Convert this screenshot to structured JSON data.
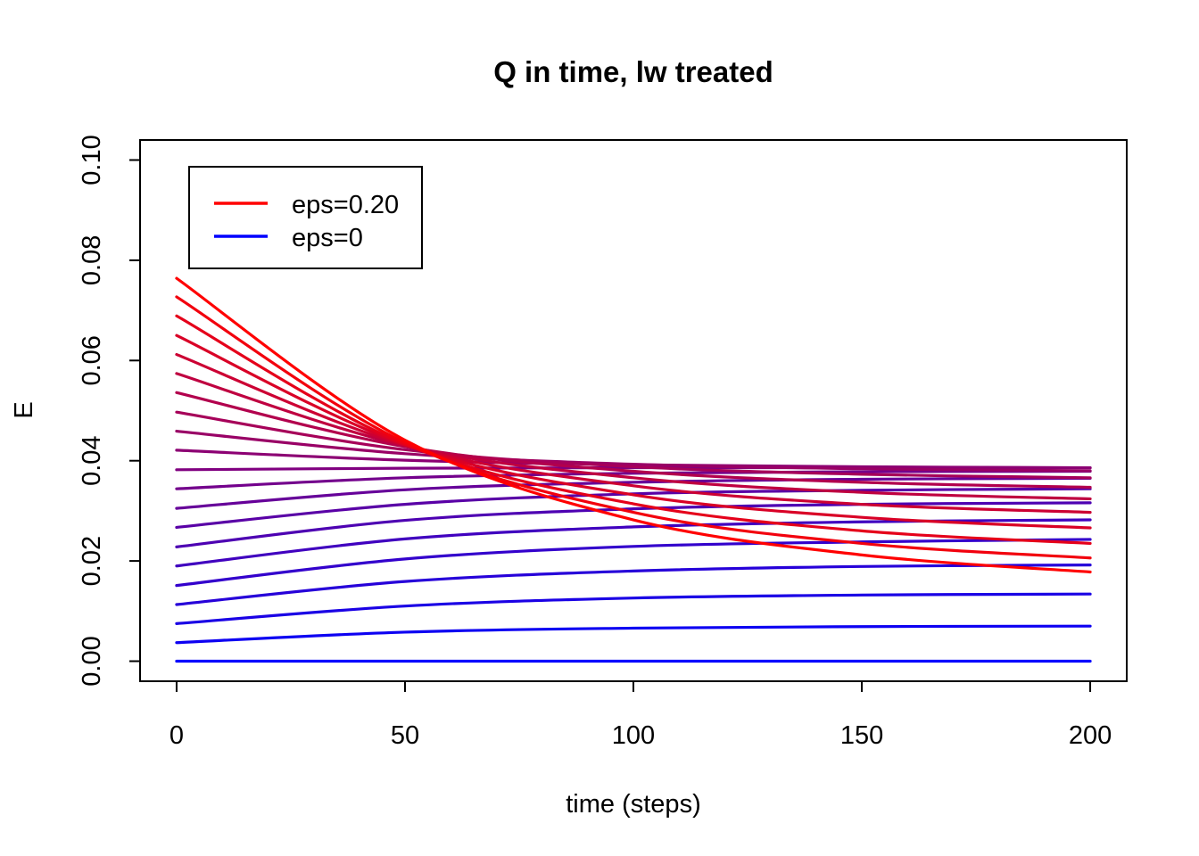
{
  "chart_data": {
    "type": "line",
    "title": "Q in time, lw treated",
    "xlabel": "time (steps)",
    "ylabel": "E",
    "xlim": [
      -8,
      208
    ],
    "ylim": [
      -0.004,
      0.104
    ],
    "xticks": [
      0,
      50,
      100,
      150,
      200
    ],
    "xtick_labels": [
      "0",
      "50",
      "100",
      "150",
      "200"
    ],
    "yticks": [
      0.0,
      0.02,
      0.04,
      0.06,
      0.08,
      0.1
    ],
    "ytick_labels": [
      "0.00",
      "0.02",
      "0.04",
      "0.06",
      "0.08",
      "0.10"
    ],
    "grid": false,
    "legend_position": "top-left",
    "legend": [
      {
        "label": "eps=0.20",
        "color": "#ff0000"
      },
      {
        "label": "eps=0",
        "color": "#0000ff"
      }
    ],
    "x": [
      0,
      50,
      100,
      150,
      200
    ],
    "series": [
      {
        "color": "#0000ff",
        "values": [
          0.0,
          0.0,
          0.0,
          0.0,
          0.0
        ]
      },
      {
        "color": "#0d00f2",
        "values": [
          0.0037,
          0.0058,
          0.0066,
          0.0069,
          0.007
        ]
      },
      {
        "color": "#1a00e5",
        "values": [
          0.0075,
          0.011,
          0.0126,
          0.0132,
          0.0134
        ]
      },
      {
        "color": "#2600d9",
        "values": [
          0.0113,
          0.0159,
          0.018,
          0.0189,
          0.0192
        ]
      },
      {
        "color": "#3300cc",
        "values": [
          0.0151,
          0.0204,
          0.0229,
          0.0238,
          0.0243
        ]
      },
      {
        "color": "#4000bf",
        "values": [
          0.019,
          0.0244,
          0.0268,
          0.0278,
          0.0282
        ]
      },
      {
        "color": "#4d00b2",
        "values": [
          0.0228,
          0.0281,
          0.0304,
          0.0313,
          0.0316
        ]
      },
      {
        "color": "#5900a6",
        "values": [
          0.0267,
          0.0313,
          0.0334,
          0.0341,
          0.0344
        ]
      },
      {
        "color": "#660099",
        "values": [
          0.0305,
          0.0342,
          0.0357,
          0.0363,
          0.0365
        ]
      },
      {
        "color": "#73008c",
        "values": [
          0.0344,
          0.0366,
          0.0375,
          0.0378,
          0.0379
        ]
      },
      {
        "color": "#800080",
        "values": [
          0.0382,
          0.0385,
          0.0386,
          0.0386,
          0.0386
        ]
      },
      {
        "color": "#8c0073",
        "values": [
          0.0421,
          0.0401,
          0.0392,
          0.0388,
          0.0386
        ]
      },
      {
        "color": "#990066",
        "values": [
          0.0459,
          0.0414,
          0.0393,
          0.0384,
          0.038
        ]
      },
      {
        "color": "#a60059",
        "values": [
          0.0497,
          0.0422,
          0.0388,
          0.0373,
          0.0366
        ]
      },
      {
        "color": "#b2004d",
        "values": [
          0.0536,
          0.0428,
          0.0379,
          0.0357,
          0.0347
        ]
      },
      {
        "color": "#bf0040",
        "values": [
          0.0574,
          0.043,
          0.0366,
          0.0337,
          0.0324
        ]
      },
      {
        "color": "#cc0033",
        "values": [
          0.0612,
          0.0431,
          0.035,
          0.0313,
          0.0297
        ]
      },
      {
        "color": "#d90026",
        "values": [
          0.065,
          0.0432,
          0.0332,
          0.0287,
          0.0266
        ]
      },
      {
        "color": "#e5001a",
        "values": [
          0.0689,
          0.0433,
          0.0314,
          0.026,
          0.0235
        ]
      },
      {
        "color": "#f2000d",
        "values": [
          0.0727,
          0.0436,
          0.0297,
          0.0235,
          0.0206
        ]
      },
      {
        "color": "#ff0000",
        "values": [
          0.0764,
          0.0441,
          0.0282,
          0.0212,
          0.0178
        ]
      }
    ]
  }
}
